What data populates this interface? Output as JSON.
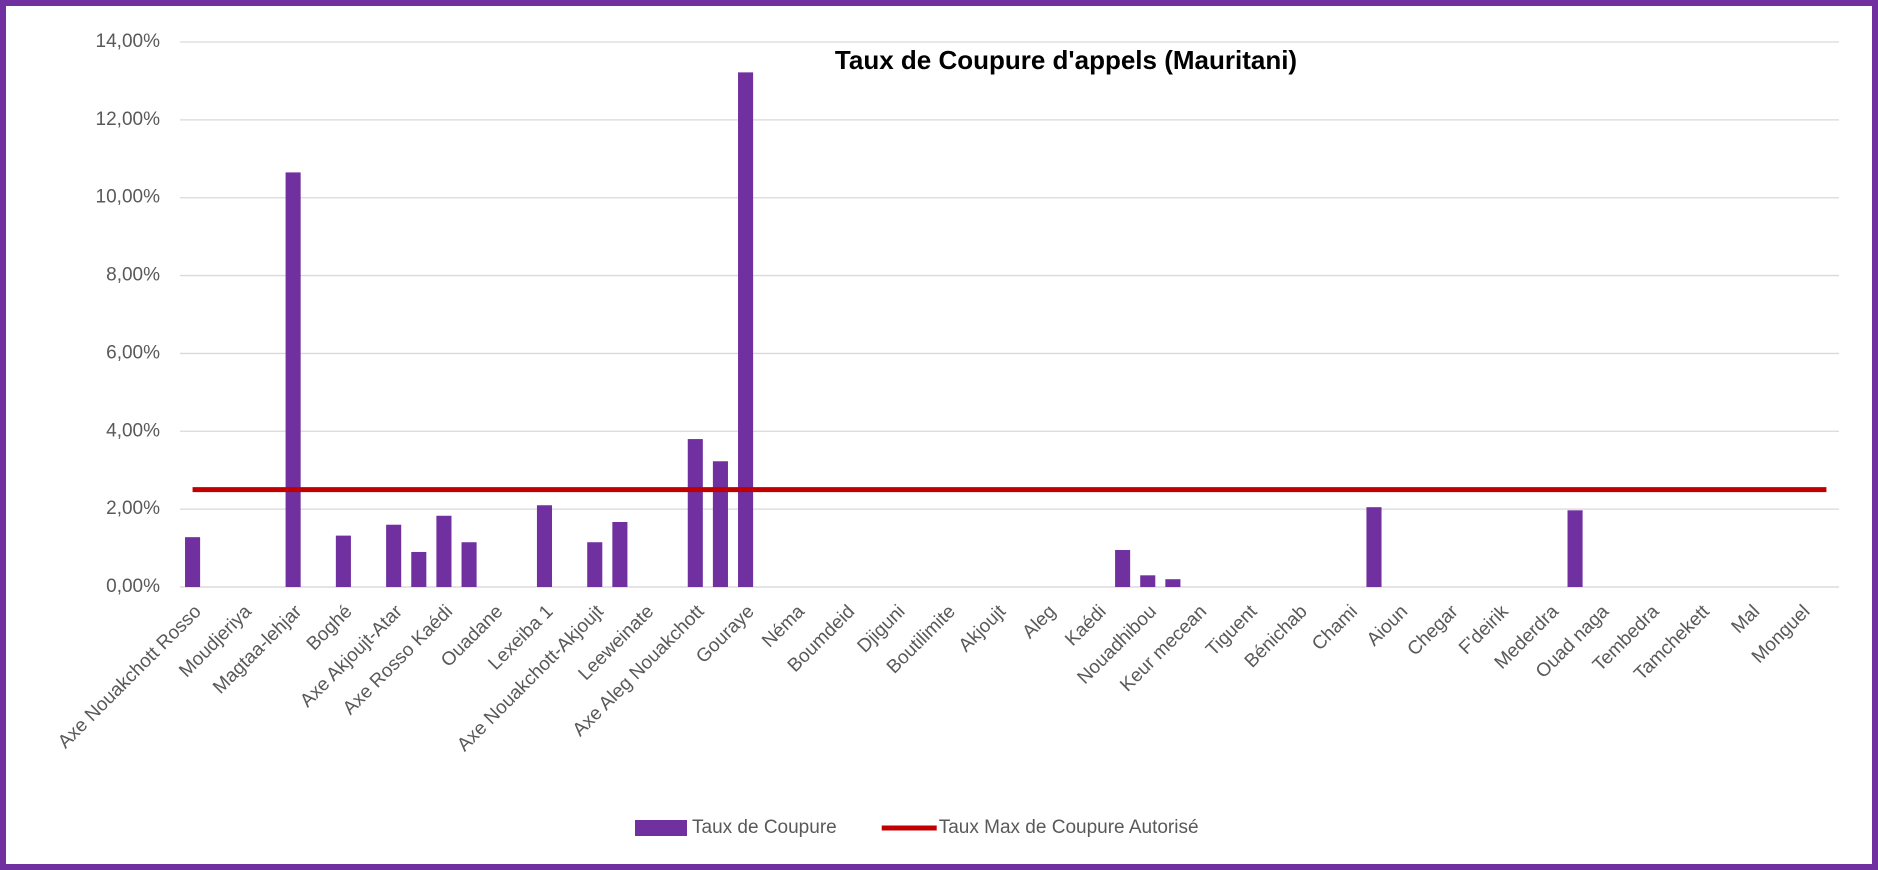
{
  "chart_data": {
    "type": "bar",
    "title": "Taux de Coupure d'appels (Mauritani)",
    "categories": [
      "Axe Nouakchott Rosso",
      null,
      "Moudjeriya",
      null,
      "Magtaa-lehjar",
      null,
      "Boghé",
      null,
      "Axe Akjoujt-Atar",
      null,
      "Axe Rosso Kaédi",
      null,
      "Ouadane",
      null,
      "Lexeiba 1",
      null,
      "Axe Nouakchott-Akjoujt",
      null,
      "Leeweinate",
      null,
      "Axe Aleg Nouakchott",
      null,
      "Gouraye",
      null,
      "Néma",
      null,
      "Boumdeid",
      null,
      "Djiguni",
      null,
      "Boutilimite",
      null,
      "Akjoujt",
      null,
      "Aleg",
      null,
      "Kaédi",
      null,
      "Nouadhibou",
      null,
      "Keur mecean",
      null,
      "Tiguent",
      null,
      "Bénichab",
      null,
      "Chami",
      null,
      "Aioun",
      null,
      "Chegar",
      null,
      "F'deirik",
      null,
      "Mederdra",
      null,
      "Ouad naga",
      null,
      "Tembedra",
      null,
      "Tamchekett",
      null,
      "Mal",
      null,
      "Monguel",
      null
    ],
    "series": [
      {
        "name": "Taux de Coupure",
        "type": "bar",
        "color": "#7030a0",
        "values": [
          1.28,
          null,
          null,
          null,
          10.65,
          null,
          1.32,
          null,
          1.6,
          0.9,
          1.83,
          1.15,
          null,
          null,
          2.1,
          null,
          1.15,
          1.67,
          null,
          null,
          3.8,
          3.23,
          13.22,
          null,
          null,
          null,
          null,
          null,
          null,
          null,
          null,
          null,
          null,
          null,
          null,
          null,
          null,
          0.95,
          0.3,
          0.2,
          null,
          null,
          null,
          null,
          null,
          null,
          null,
          2.05,
          null,
          null,
          null,
          null,
          null,
          null,
          null,
          1.97,
          null,
          null,
          null,
          null,
          null,
          null,
          null,
          null,
          null,
          null
        ]
      },
      {
        "name": "Taux Max de Coupure Autorisé",
        "type": "line",
        "color": "#c00000",
        "values": [
          2.5,
          2.5,
          2.5,
          2.5,
          2.5,
          2.5,
          2.5,
          2.5,
          2.5,
          2.5,
          2.5,
          2.5,
          2.5,
          2.5,
          2.5,
          2.5,
          2.5,
          2.5,
          2.5,
          2.5,
          2.5,
          2.5,
          2.5,
          2.5,
          2.5,
          2.5,
          2.5,
          2.5,
          2.5,
          2.5,
          2.5,
          2.5,
          2.5,
          2.5,
          2.5,
          2.5,
          2.5,
          2.5,
          2.5,
          2.5,
          2.5,
          2.5,
          2.5,
          2.5,
          2.5,
          2.5,
          2.5,
          2.5,
          2.5,
          2.5,
          2.5,
          2.5,
          2.5,
          2.5,
          2.5,
          2.5,
          2.5,
          2.5,
          2.5,
          2.5,
          2.5,
          2.5,
          2.5,
          2.5,
          2.5,
          2.5
        ]
      }
    ],
    "ylim": [
      0,
      14
    ],
    "yticks": [
      {
        "value": 0,
        "label": "0,00%"
      },
      {
        "value": 2,
        "label": "2,00%"
      },
      {
        "value": 4,
        "label": "4,00%"
      },
      {
        "value": 6,
        "label": "6,00%"
      },
      {
        "value": 8,
        "label": "8,00%"
      },
      {
        "value": 10,
        "label": "10,00%"
      },
      {
        "value": 12,
        "label": "12,00%"
      },
      {
        "value": 14,
        "label": "14,00%"
      }
    ],
    "grid": true,
    "legend": "bottom"
  }
}
